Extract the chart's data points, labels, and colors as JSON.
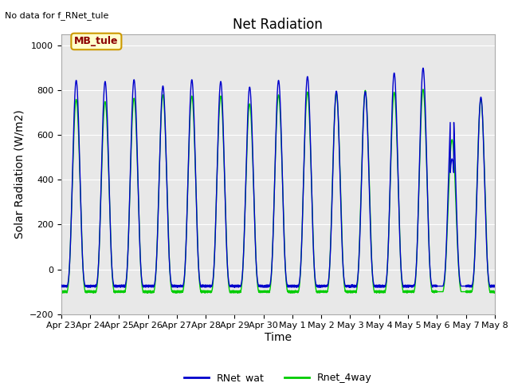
{
  "title": "Net Radiation",
  "xlabel": "Time",
  "ylabel": "Solar Radiation (W/m2)",
  "annotation_text": "No data for f_RNet_tule",
  "box_label": "MB_tule",
  "ylim": [
    -200,
    1050
  ],
  "yticks": [
    -200,
    0,
    200,
    400,
    600,
    800,
    1000
  ],
  "xtick_labels": [
    "Apr 23",
    "Apr 24",
    "Apr 25",
    "Apr 26",
    "Apr 27",
    "Apr 28",
    "Apr 29",
    "Apr 30",
    "May 1",
    "May 2",
    "May 3",
    "May 4",
    "May 5",
    "May 6",
    "May 7",
    "May 8"
  ],
  "legend_labels": [
    "RNet_wat",
    "Rnet_4way"
  ],
  "legend_colors": [
    "#0000cc",
    "#00cc00"
  ],
  "bg_color": "#e8e8e8",
  "line_color_blue": "#0000cc",
  "line_color_green": "#00cc00",
  "num_days": 15,
  "peak_values_blue": [
    845,
    840,
    848,
    820,
    848,
    840,
    815,
    845,
    862,
    797,
    795,
    878,
    900,
    760,
    770
  ],
  "peak_values_green": [
    760,
    750,
    765,
    780,
    775,
    775,
    740,
    780,
    793,
    787,
    800,
    792,
    805,
    580,
    760
  ],
  "night_val_blue": -75,
  "night_val_green": -100,
  "title_fontsize": 12,
  "label_fontsize": 10,
  "tick_fontsize": 8
}
